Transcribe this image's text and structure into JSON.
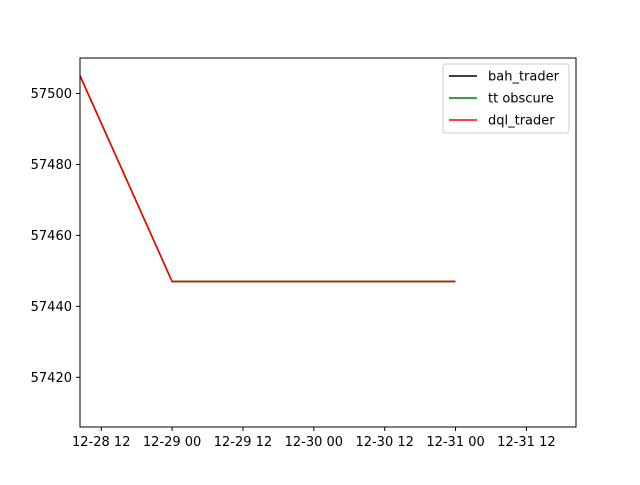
{
  "chart_data": {
    "type": "line",
    "title": "",
    "xlabel": "",
    "ylabel": "",
    "x_ticks": [
      "12-28 12",
      "12-29 00",
      "12-29 12",
      "12-30 00",
      "12-30 12",
      "12-31 00",
      "12-31 12"
    ],
    "y_ticks": [
      57420,
      57440,
      57460,
      57480,
      57500
    ],
    "ylim": [
      57406,
      57510
    ],
    "xlim": [
      "12-28 08:24",
      "12-31 20:24"
    ],
    "grid": false,
    "legend_position": "top-right",
    "x": [
      "12-28 08:24",
      "12-29 00:00",
      "12-31 00:00"
    ],
    "series": [
      {
        "name": "bah_trader",
        "color": "#000000",
        "values": [
          57505,
          57447,
          57447
        ]
      },
      {
        "name": "tt obscure",
        "color": "#008000",
        "values": [
          57505,
          57447,
          57447
        ]
      },
      {
        "name": "dql_trader",
        "color": "#ff0000",
        "values": [
          57505,
          57447,
          57447
        ]
      }
    ]
  }
}
